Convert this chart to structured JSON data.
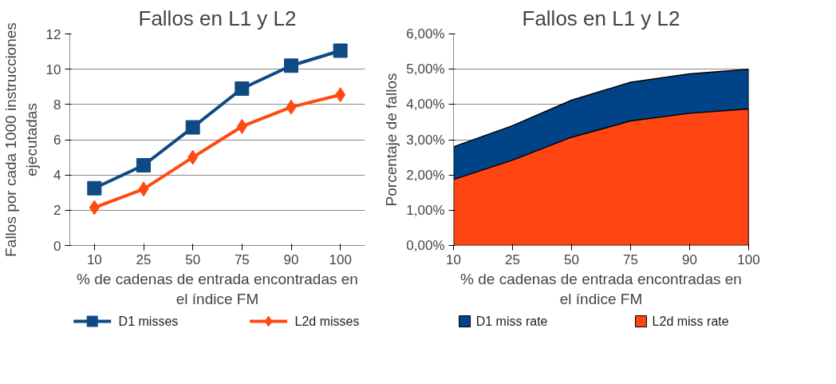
{
  "chart_data": [
    {
      "type": "line",
      "title": "Fallos en L1 y L2",
      "xlabel": "% de cadenas de entrada encontradas en el índice FM",
      "ylabel": "Fallos por cada 1000 instrucciones ejecutadas",
      "categories": [
        "10",
        "25",
        "50",
        "75",
        "90",
        "100"
      ],
      "series": [
        {
          "name": "D1  misses",
          "color": "#0f4a84",
          "marker": "square",
          "values": [
            3.25,
            4.55,
            6.7,
            8.9,
            10.2,
            11.05
          ]
        },
        {
          "name": "L2d misses",
          "color": "#ff4a12",
          "marker": "diamond",
          "values": [
            2.15,
            3.2,
            5.0,
            6.75,
            7.85,
            8.55
          ]
        }
      ],
      "ylim": [
        0,
        12
      ],
      "yticks": [
        0,
        2,
        4,
        6,
        8,
        10,
        12
      ],
      "grid": "y",
      "legend": "bottom",
      "line_style": "solid"
    },
    {
      "type": "area",
      "title": "Fallos en L1 y L2",
      "xlabel": "% de cadenas de entrada encontradas en el índice FM",
      "ylabel": "Porcentaje de fallos",
      "categories": [
        "10",
        "25",
        "50",
        "75",
        "90",
        "100"
      ],
      "series": [
        {
          "name": "D1  miss rate",
          "color": "#004387",
          "values": [
            2.8,
            3.4,
            4.12,
            4.63,
            4.87,
            5.0
          ]
        },
        {
          "name": "L2d miss rate",
          "color": "#ff4511",
          "values": [
            1.87,
            2.42,
            3.07,
            3.53,
            3.75,
            3.87
          ]
        }
      ],
      "ylim": [
        0,
        6
      ],
      "yticks": [
        {
          "value": 0,
          "label": "0,00%"
        },
        {
          "value": 1,
          "label": "1,00%"
        },
        {
          "value": 2,
          "label": "2,00%"
        },
        {
          "value": 3,
          "label": "3,00%"
        },
        {
          "value": 4,
          "label": "4,00%"
        },
        {
          "value": 5,
          "label": "5,00%"
        },
        {
          "value": 6,
          "label": "6,00%"
        }
      ],
      "grid": "y",
      "legend": "bottom"
    }
  ]
}
